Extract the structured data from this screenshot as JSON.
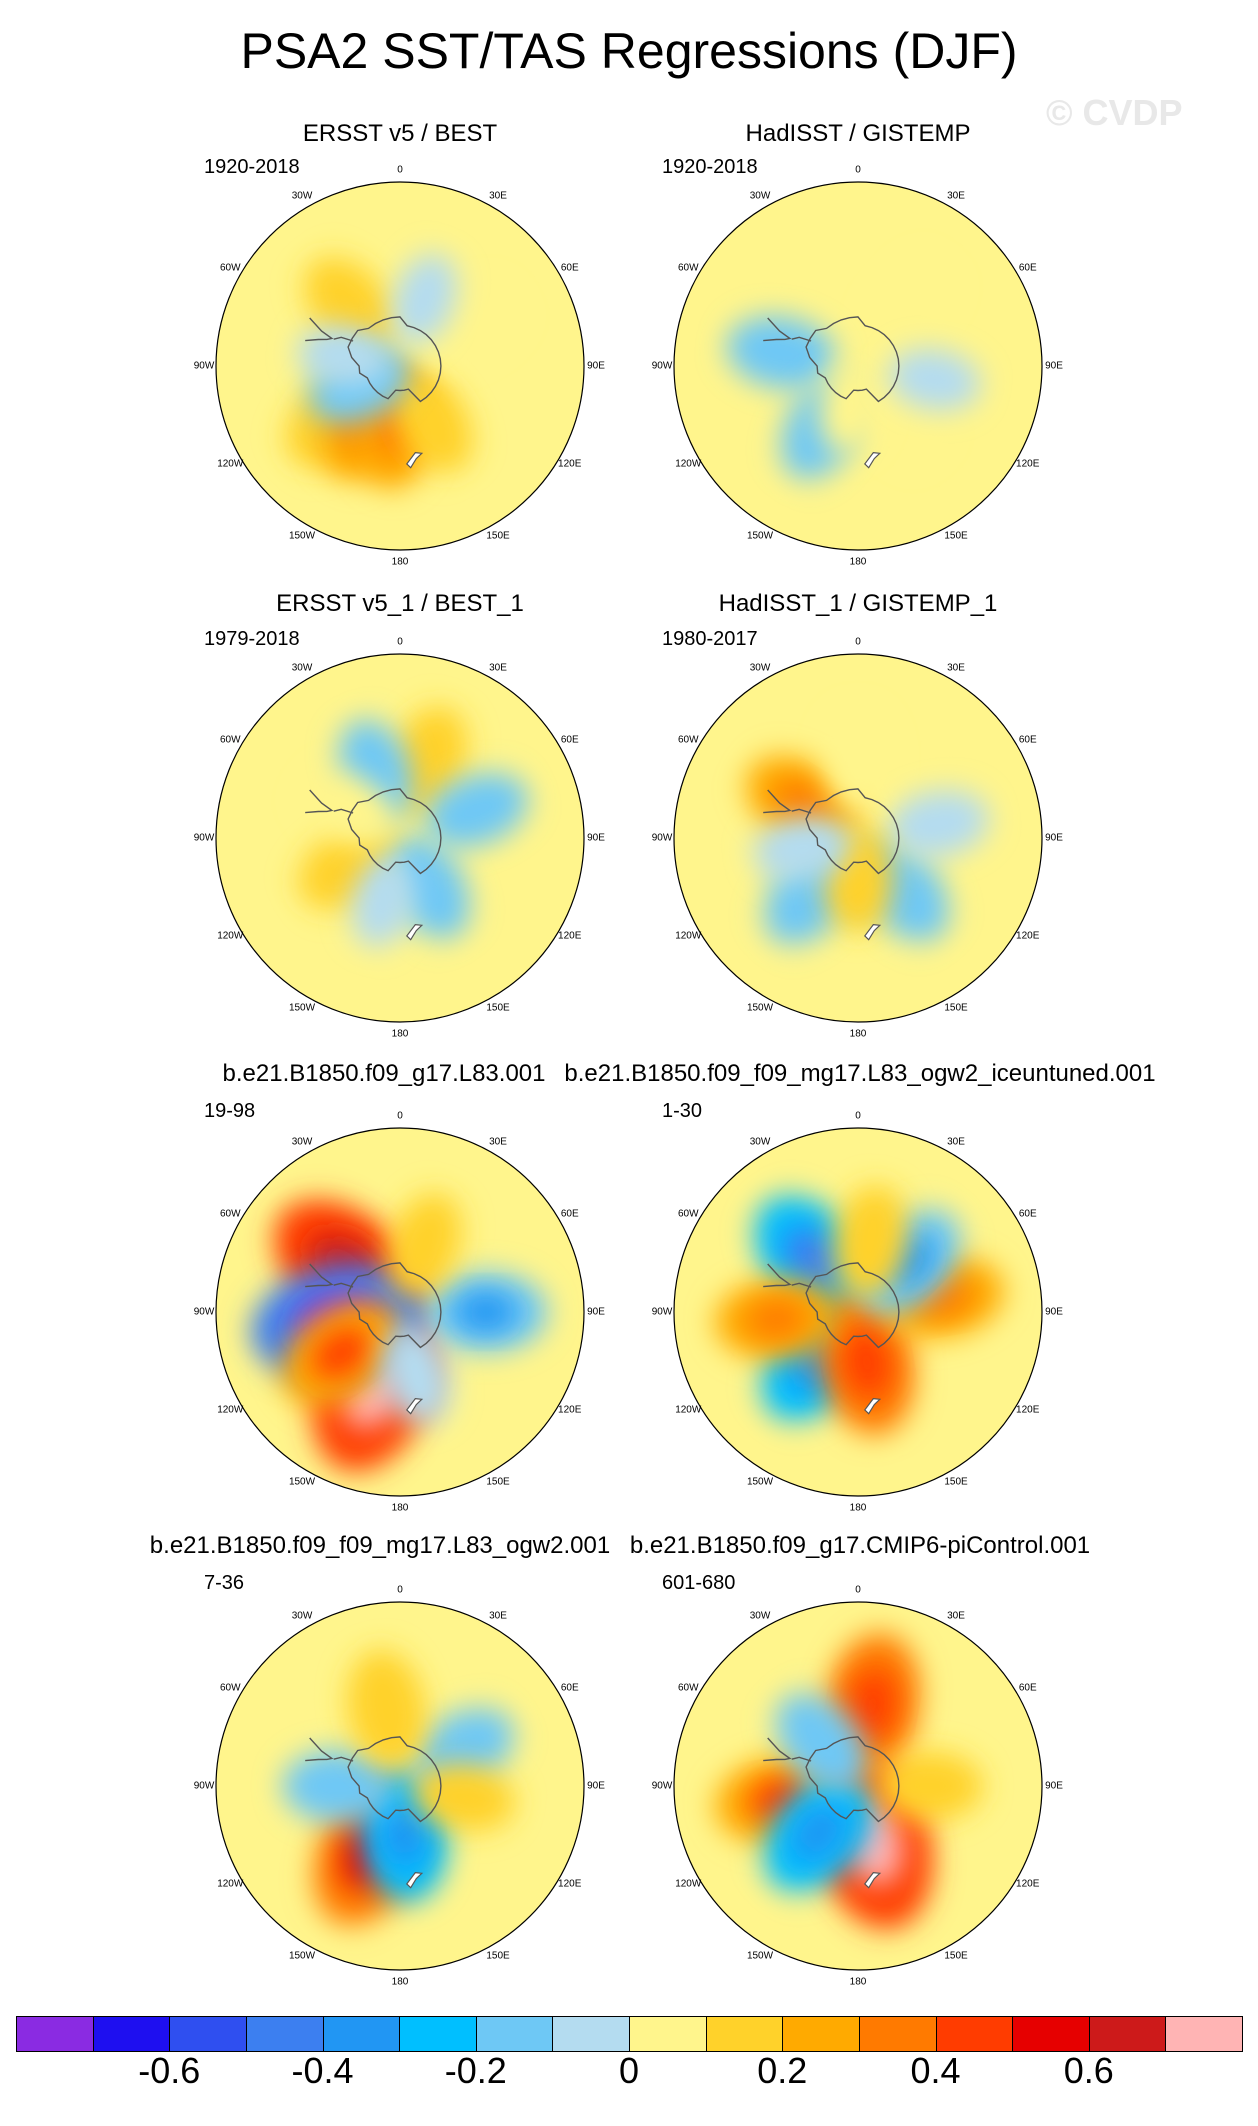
{
  "title": "PSA2 SST/TAS Regressions (DJF)",
  "watermark": "© CVDP",
  "chart_data": {
    "type": "heatmap",
    "projection": "south-polar-stereographic",
    "season": "DJF",
    "panels": [
      {
        "title": "ERSST v5 / BEST",
        "period": "1920-2018",
        "anomalies": [
          {
            "lon": -40,
            "lat": -52,
            "value": 0.15
          },
          {
            "lon": -130,
            "lat": -50,
            "value": 0.18
          },
          {
            "lon": -150,
            "lat": -58,
            "value": 0.2
          },
          {
            "lon": -175,
            "lat": -60,
            "value": 0.2
          },
          {
            "lon": 150,
            "lat": -58,
            "value": 0.12
          },
          {
            "lon": 60,
            "lat": -50,
            "value": 0.08
          },
          {
            "lon": -115,
            "lat": -68,
            "value": -0.12
          },
          {
            "lon": -80,
            "lat": -62,
            "value": -0.06
          },
          {
            "lon": 20,
            "lat": -55,
            "value": -0.06
          }
        ]
      },
      {
        "title": "HadISST / GISTEMP",
        "period": "1920-2018",
        "anomalies": [
          {
            "lon": -80,
            "lat": -52,
            "value": -0.14
          },
          {
            "lon": -150,
            "lat": -55,
            "value": -0.14
          },
          {
            "lon": 140,
            "lat": -58,
            "value": 0.08
          },
          {
            "lon": 40,
            "lat": -50,
            "value": 0.06
          },
          {
            "lon": -170,
            "lat": -70,
            "value": 0.07
          },
          {
            "lon": 100,
            "lat": -52,
            "value": -0.06
          }
        ]
      },
      {
        "title": "ERSST v5_1 / BEST_1",
        "period": "1979-2018",
        "anomalies": [
          {
            "lon": 20,
            "lat": -50,
            "value": 0.15
          },
          {
            "lon": -120,
            "lat": -62,
            "value": 0.15
          },
          {
            "lon": 150,
            "lat": -62,
            "value": -0.14
          },
          {
            "lon": 70,
            "lat": -50,
            "value": -0.12
          },
          {
            "lon": -20,
            "lat": -55,
            "value": -0.12
          },
          {
            "lon": -165,
            "lat": -58,
            "value": -0.06
          },
          {
            "lon": -60,
            "lat": -62,
            "value": 0.08
          }
        ]
      },
      {
        "title": "HadISST_1 / GISTEMP_1",
        "period": "1980-2017",
        "anomalies": [
          {
            "lon": -58,
            "lat": -58,
            "value": 0.2
          },
          {
            "lon": -140,
            "lat": -54,
            "value": -0.16
          },
          {
            "lon": 140,
            "lat": -56,
            "value": -0.16
          },
          {
            "lon": 80,
            "lat": -50,
            "value": -0.1
          },
          {
            "lon": 180,
            "lat": -70,
            "value": 0.12
          },
          {
            "lon": 0,
            "lat": -52,
            "value": 0.08
          },
          {
            "lon": -100,
            "lat": -62,
            "value": -0.08
          }
        ]
      },
      {
        "title": "b.e21.B1850.f09_g17.L83.001",
        "period": "19-98",
        "anomalies": [
          {
            "lon": -50,
            "lat": -56,
            "value": 0.4
          },
          {
            "lon": -160,
            "lat": -52,
            "value": 0.45
          },
          {
            "lon": -100,
            "lat": -60,
            "value": -0.45
          },
          {
            "lon": -125,
            "lat": -55,
            "value": 0.25
          },
          {
            "lon": 90,
            "lat": -48,
            "value": -0.2
          },
          {
            "lon": 165,
            "lat": -58,
            "value": -0.1
          },
          {
            "lon": 20,
            "lat": -55,
            "value": 0.12
          }
        ]
      },
      {
        "title": "b.e21.B1850.f09_f09_mg17.L83_ogw2_iceuntuned.001",
        "period": "1-30",
        "anomalies": [
          {
            "lon": -40,
            "lat": -56,
            "value": -0.3
          },
          {
            "lon": -140,
            "lat": -58,
            "value": -0.25
          },
          {
            "lon": 170,
            "lat": -65,
            "value": 0.3
          },
          {
            "lon": 80,
            "lat": -48,
            "value": 0.2
          },
          {
            "lon": 45,
            "lat": -55,
            "value": -0.2
          },
          {
            "lon": -95,
            "lat": -50,
            "value": 0.2
          },
          {
            "lon": 10,
            "lat": -55,
            "value": 0.15
          }
        ]
      },
      {
        "title": "b.e21.B1850.f09_f09_mg17.L83_ogw2.001",
        "period": "7-36",
        "anomalies": [
          {
            "lon": -155,
            "lat": -55,
            "value": 0.35
          },
          {
            "lon": 175,
            "lat": -66,
            "value": -0.25
          },
          {
            "lon": -90,
            "lat": -60,
            "value": -0.15
          },
          {
            "lon": 60,
            "lat": -55,
            "value": -0.15
          },
          {
            "lon": -10,
            "lat": -52,
            "value": 0.18
          },
          {
            "lon": 100,
            "lat": -58,
            "value": 0.1
          }
        ]
      },
      {
        "title": "b.e21.B1850.f09_g17.CMIP6-piControl.001",
        "period": "601-680",
        "anomalies": [
          {
            "lon": 165,
            "lat": -62,
            "value": 0.45
          },
          {
            "lon": -100,
            "lat": -52,
            "value": 0.25
          },
          {
            "lon": -140,
            "lat": -60,
            "value": -0.25
          },
          {
            "lon": 10,
            "lat": -50,
            "value": 0.3
          },
          {
            "lon": -40,
            "lat": -62,
            "value": -0.15
          },
          {
            "lon": 90,
            "lat": -55,
            "value": 0.12
          }
        ]
      }
    ],
    "longitude_labels": [
      "0",
      "30E",
      "60E",
      "90E",
      "120E",
      "150E",
      "180",
      "150W",
      "120W",
      "90W",
      "60W",
      "30W"
    ],
    "colorbar": {
      "levels": [
        -0.7,
        -0.6,
        -0.5,
        -0.4,
        -0.3,
        -0.2,
        -0.1,
        0,
        0.1,
        0.2,
        0.3,
        0.4,
        0.5,
        0.6,
        0.7
      ],
      "colors": [
        "#8a2be2",
        "#1e0ff0",
        "#2f4ff0",
        "#3c7ff0",
        "#2196f3",
        "#00bfff",
        "#6ec8f5",
        "#b4dcf0",
        "#fff58c",
        "#ffd22a",
        "#ffaa00",
        "#ff7a00",
        "#ff3c00",
        "#e60000",
        "#cd1a1a",
        "#ffb4b4"
      ],
      "tick_labels": [
        "-0.6",
        "-0.4",
        "-0.2",
        "0",
        "0.2",
        "0.4",
        "0.6"
      ],
      "tick_values": [
        -0.6,
        -0.4,
        -0.2,
        0,
        0.2,
        0.4,
        0.6
      ]
    }
  }
}
